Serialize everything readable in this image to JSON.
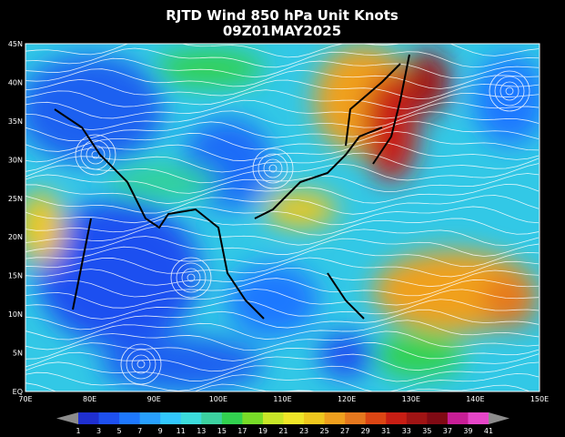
{
  "header": {
    "title": "RJTD Wind 850 hPa Unit Knots",
    "subtitle": "09Z01MAY2025"
  },
  "map": {
    "lat_labels": [
      "45N",
      "40N",
      "35N",
      "30N",
      "25N",
      "20N",
      "15N",
      "10N",
      "5N",
      "EQ"
    ],
    "lon_labels": [
      "70E",
      "80E",
      "90E",
      "100E",
      "110E",
      "120E",
      "130E",
      "140E",
      "150E"
    ]
  },
  "colorbar": {
    "labels": [
      "1",
      "3",
      "5",
      "7",
      "9",
      "11",
      "13",
      "15",
      "17",
      "19",
      "21",
      "23",
      "25",
      "27",
      "29",
      "31",
      "33",
      "35",
      "37",
      "39",
      "41"
    ],
    "colors": [
      "#8c8c8c",
      "#1f2fd0",
      "#1e50f0",
      "#1e78ff",
      "#28a0ff",
      "#32c8ff",
      "#3cdcdc",
      "#3cd2a0",
      "#32d250",
      "#78dc28",
      "#c8e628",
      "#f0e628",
      "#f0c81e",
      "#f0a01e",
      "#e6781e",
      "#dc4614",
      "#c81e14",
      "#a01414",
      "#800a14",
      "#c81e96",
      "#e646c8",
      "#8c8c8c"
    ]
  }
}
